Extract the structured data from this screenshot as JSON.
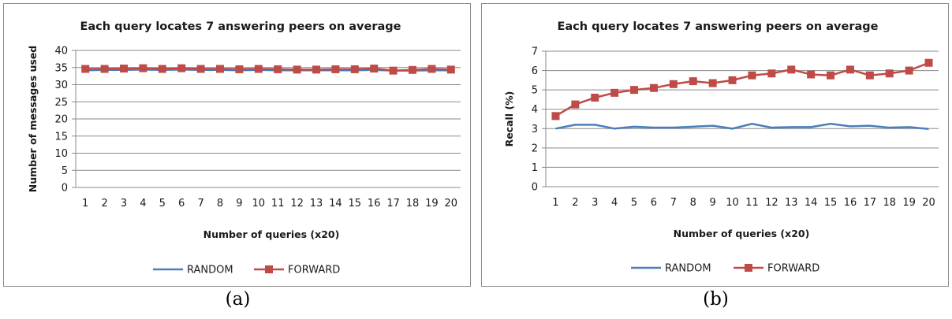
{
  "captions": {
    "a": "(a)",
    "b": "(b)"
  },
  "colors": {
    "random": "#4a7ebb",
    "forward": "#be4b48",
    "grid": "#8a8a8a",
    "axis": "#8a8a8a"
  },
  "chart_data": [
    {
      "type": "line",
      "title": "Each query locates 7 answering peers on average",
      "xlabel": "Number of queries (x20)",
      "ylabel": "Number of messages used",
      "categories": [
        "1",
        "2",
        "3",
        "4",
        "5",
        "6",
        "7",
        "8",
        "9",
        "10",
        "11",
        "12",
        "13",
        "14",
        "15",
        "16",
        "17",
        "18",
        "19",
        "20"
      ],
      "ylim": [
        0,
        40
      ],
      "yticks": [
        0,
        5,
        10,
        15,
        20,
        25,
        30,
        35,
        40
      ],
      "grid": true,
      "legend_position": "bottom",
      "series": [
        {
          "name": "RANDOM",
          "marker": "none",
          "values": [
            34.2,
            34.3,
            34.3,
            34.4,
            34.3,
            34.4,
            34.3,
            34.3,
            34.2,
            34.3,
            34.2,
            34.2,
            34.2,
            34.2,
            34.2,
            34.3,
            34.1,
            34.1,
            34.2,
            34.2
          ]
        },
        {
          "name": "FORWARD",
          "marker": "square",
          "values": [
            34.6,
            34.6,
            34.7,
            34.8,
            34.6,
            34.8,
            34.6,
            34.6,
            34.5,
            34.6,
            34.5,
            34.4,
            34.4,
            34.5,
            34.5,
            34.7,
            34.1,
            34.3,
            34.6,
            34.4
          ]
        }
      ]
    },
    {
      "type": "line",
      "title": "Each query locates 7 answering peers on average",
      "xlabel": "Number of queries (x20)",
      "ylabel": "Recall (%)",
      "categories": [
        "1",
        "2",
        "3",
        "4",
        "5",
        "6",
        "7",
        "8",
        "9",
        "10",
        "11",
        "12",
        "13",
        "14",
        "15",
        "16",
        "17",
        "18",
        "19",
        "20"
      ],
      "ylim": [
        0,
        7
      ],
      "yticks": [
        0,
        1,
        2,
        3,
        4,
        5,
        6,
        7
      ],
      "grid": true,
      "legend_position": "bottom",
      "series": [
        {
          "name": "RANDOM",
          "marker": "none",
          "values": [
            3.0,
            3.2,
            3.2,
            3.0,
            3.1,
            3.05,
            3.05,
            3.1,
            3.15,
            3.0,
            3.25,
            3.05,
            3.08,
            3.08,
            3.25,
            3.12,
            3.15,
            3.05,
            3.08,
            2.98
          ]
        },
        {
          "name": "FORWARD",
          "marker": "square",
          "values": [
            3.65,
            4.25,
            4.6,
            4.85,
            5.0,
            5.1,
            5.3,
            5.45,
            5.35,
            5.5,
            5.75,
            5.85,
            6.05,
            5.8,
            5.75,
            6.05,
            5.75,
            5.85,
            6.0,
            6.4
          ]
        }
      ]
    }
  ]
}
